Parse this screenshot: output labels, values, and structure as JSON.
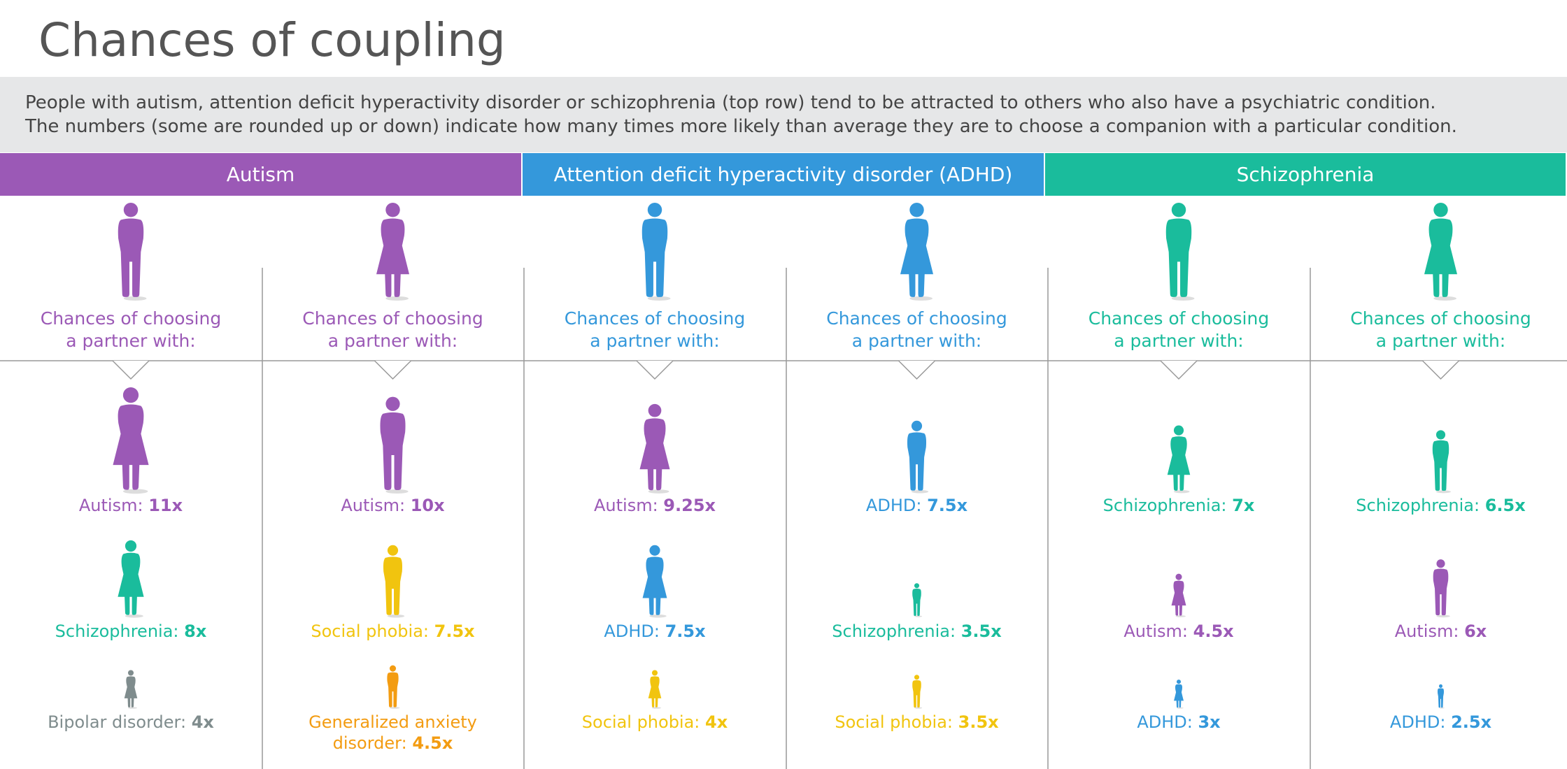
{
  "title": "Chances of coupling",
  "intro": {
    "line1": "People with autism, attention deficit hyperactivity disorder or schizophrenia (top row) tend to be attracted to others who also have a psychiatric condition.",
    "line2": "The numbers (some are rounded up or down) indicate how many times more likely than average they are to choose a companion with a particular condition."
  },
  "colors": {
    "autism": "#9b59b6",
    "adhd": "#3498db",
    "schizophrenia": "#1abc9c",
    "social_phobia": "#f1c40f",
    "anxiety": "#f39c12",
    "bipolar": "#7f8c8d",
    "text_gray": "#555555",
    "line": "#999999"
  },
  "chart_data": {
    "type": "table",
    "title": "Chances of coupling",
    "unit": "times more likely than average",
    "groups": [
      {
        "name": "Autism",
        "color_key": "autism"
      },
      {
        "name": "Attention deficit hyperactivity disorder (ADHD)",
        "color_key": "adhd"
      },
      {
        "name": "Schizophrenia",
        "color_key": "schizophrenia"
      }
    ],
    "columns": [
      {
        "group": "Autism",
        "sex": "male",
        "color_key": "autism",
        "prompt_line1": "Chances of choosing",
        "prompt_line2": "a partner with:",
        "partners": [
          {
            "label": "Autism:",
            "value_text": "11x",
            "value": 11,
            "sex": "female",
            "color_key": "autism"
          },
          {
            "label": "Schizophrenia:",
            "value_text": "8x",
            "value": 8,
            "sex": "female",
            "color_key": "schizophrenia"
          },
          {
            "label": "Bipolar disorder:",
            "value_text": "4x",
            "value": 4,
            "sex": "female",
            "color_key": "bipolar"
          }
        ]
      },
      {
        "group": "Autism",
        "sex": "female",
        "color_key": "autism",
        "prompt_line1": "Chances of choosing",
        "prompt_line2": "a partner with:",
        "partners": [
          {
            "label": "Autism:",
            "value_text": "10x",
            "value": 10,
            "sex": "male",
            "color_key": "autism"
          },
          {
            "label": "Social phobia:",
            "value_text": "7.5x",
            "value": 7.5,
            "sex": "male",
            "color_key": "social_phobia"
          },
          {
            "label": "Generalized anxiety",
            "label2": "disorder:",
            "value_text": "4.5x",
            "value": 4.5,
            "sex": "male",
            "color_key": "anxiety"
          }
        ]
      },
      {
        "group": "Attention deficit hyperactivity disorder (ADHD)",
        "sex": "male",
        "color_key": "adhd",
        "prompt_line1": "Chances of choosing",
        "prompt_line2": "a partner with:",
        "partners": [
          {
            "label": "Autism:",
            "value_text": "9.25x",
            "value": 9.25,
            "sex": "female",
            "color_key": "autism"
          },
          {
            "label": "ADHD:",
            "value_text": "7.5x",
            "value": 7.5,
            "sex": "female",
            "color_key": "adhd"
          },
          {
            "label": "Social phobia:",
            "value_text": "4x",
            "value": 4,
            "sex": "female",
            "color_key": "social_phobia"
          }
        ]
      },
      {
        "group": "Attention deficit hyperactivity disorder (ADHD)",
        "sex": "female",
        "color_key": "adhd",
        "prompt_line1": "Chances of choosing",
        "prompt_line2": "a partner with:",
        "partners": [
          {
            "label": "ADHD:",
            "value_text": "7.5x",
            "value": 7.5,
            "sex": "male",
            "color_key": "adhd"
          },
          {
            "label": "Schizophrenia:",
            "value_text": "3.5x",
            "value": 3.5,
            "sex": "male",
            "color_key": "schizophrenia"
          },
          {
            "label": "Social phobia:",
            "value_text": "3.5x",
            "value": 3.5,
            "sex": "male",
            "color_key": "social_phobia"
          }
        ]
      },
      {
        "group": "Schizophrenia",
        "sex": "male",
        "color_key": "schizophrenia",
        "prompt_line1": "Chances of choosing",
        "prompt_line2": "a partner with:",
        "partners": [
          {
            "label": "Schizophrenia:",
            "value_text": "7x",
            "value": 7,
            "sex": "female",
            "color_key": "schizophrenia"
          },
          {
            "label": "Autism:",
            "value_text": "4.5x",
            "value": 4.5,
            "sex": "female",
            "color_key": "autism"
          },
          {
            "label": "ADHD:",
            "value_text": "3x",
            "value": 3,
            "sex": "female",
            "color_key": "adhd"
          }
        ]
      },
      {
        "group": "Schizophrenia",
        "sex": "female",
        "color_key": "schizophrenia",
        "prompt_line1": "Chances of choosing",
        "prompt_line2": "a partner with:",
        "partners": [
          {
            "label": "Schizophrenia:",
            "value_text": "6.5x",
            "value": 6.5,
            "sex": "male",
            "color_key": "schizophrenia"
          },
          {
            "label": "Autism:",
            "value_text": "6x",
            "value": 6,
            "sex": "male",
            "color_key": "autism"
          },
          {
            "label": "ADHD:",
            "value_text": "2.5x",
            "value": 2.5,
            "sex": "male",
            "color_key": "adhd"
          }
        ]
      }
    ]
  }
}
